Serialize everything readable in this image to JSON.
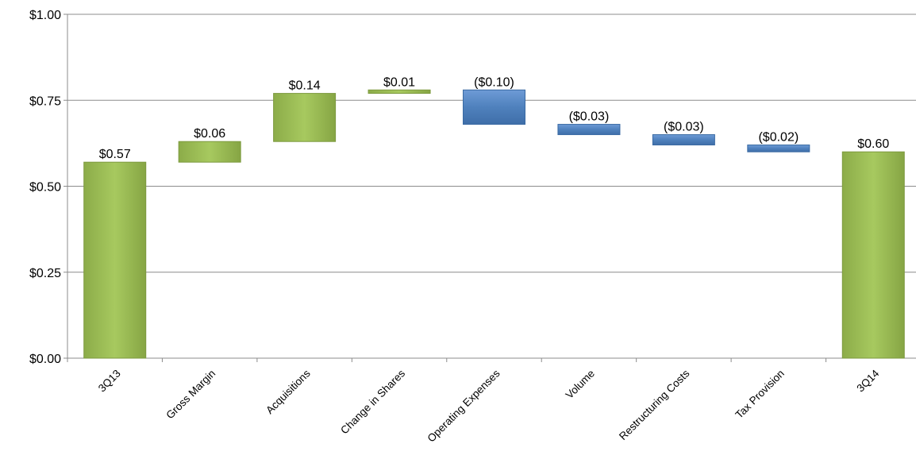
{
  "chart_data": {
    "type": "bar",
    "subtype": "waterfall",
    "title": "",
    "xlabel": "",
    "ylabel": "",
    "ylim": [
      0,
      1.0
    ],
    "y_ticks": [
      "$0.00",
      "$0.25",
      "$0.50",
      "$0.75",
      "$1.00"
    ],
    "grid": true,
    "categories": [
      "3Q13",
      "Gross Margin",
      "Acquisitions",
      "Change in Shares",
      "Operating Expenses",
      "Volume",
      "Restructuring Costs",
      "Tax Provision",
      "3Q14"
    ],
    "values": [
      0.57,
      0.06,
      0.14,
      0.01,
      -0.1,
      -0.03,
      -0.03,
      -0.02,
      0.6
    ],
    "bar_kind": [
      "total",
      "increase",
      "increase",
      "increase",
      "decrease",
      "decrease",
      "decrease",
      "decrease",
      "total"
    ],
    "data_labels": [
      "$0.57",
      "$0.06",
      "$0.14",
      "$0.01",
      "($0.10)",
      "($0.03)",
      "($0.03)",
      "($0.02)",
      "$0.60"
    ],
    "colors": {
      "increase": "#9bbb59",
      "total": "#9bbb59",
      "decrease": "#4f81bd"
    }
  }
}
